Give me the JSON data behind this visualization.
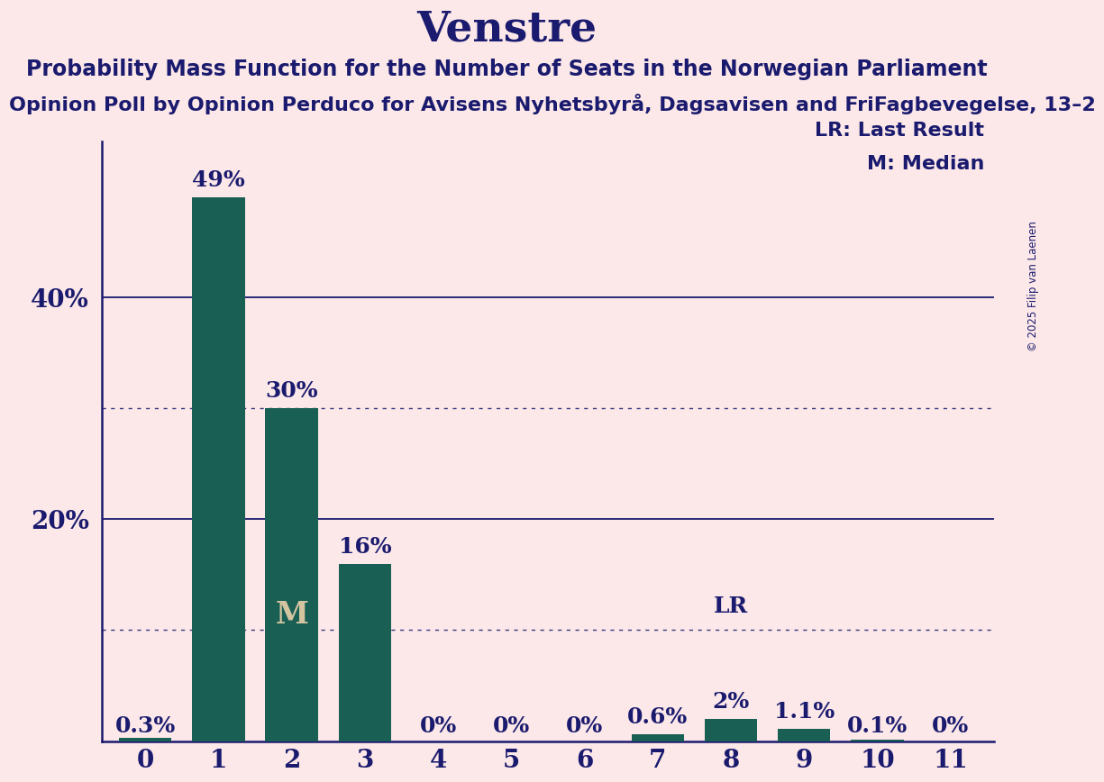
{
  "title": "Venstre",
  "subtitle": "Probability Mass Function for the Number of Seats in the Norwegian Parliament",
  "source_line": "Opinion Poll by Opinion Perduco for Avisens Nyhetsbyrå, Dagsavisen and FriFagbevegelse, 13–2",
  "copyright": "© 2025 Filip van Laenen",
  "categories": [
    0,
    1,
    2,
    3,
    4,
    5,
    6,
    7,
    8,
    9,
    10,
    11
  ],
  "values": [
    0.3,
    49,
    30,
    16,
    0,
    0,
    0,
    0.6,
    2,
    1.1,
    0.1,
    0
  ],
  "bar_color": "#1a5f54",
  "background_color": "#fce8e8",
  "text_color": "#1a1a6e",
  "title_fontsize": 34,
  "subtitle_fontsize": 17,
  "source_fontsize": 16,
  "axis_tick_fontsize": 20,
  "bar_label_fontsize": 18,
  "solid_grid_lines": [
    20,
    40
  ],
  "dotted_grid_lines": [
    10,
    30
  ],
  "median_bar": 2,
  "last_result_bar": 8,
  "legend_lr": "LR: Last Result",
  "legend_m": "M: Median",
  "bar_label_values": [
    "0.3%",
    "49%",
    "30%",
    "16%",
    "0%",
    "0%",
    "0%",
    "0.6%",
    "2%",
    "1.1%",
    "0.1%",
    "0%"
  ],
  "median_label": "M",
  "lr_label": "LR",
  "ylim": [
    0,
    54
  ],
  "ytick_positions": [
    20,
    40
  ],
  "ytick_labels": [
    "20%",
    "40%"
  ]
}
